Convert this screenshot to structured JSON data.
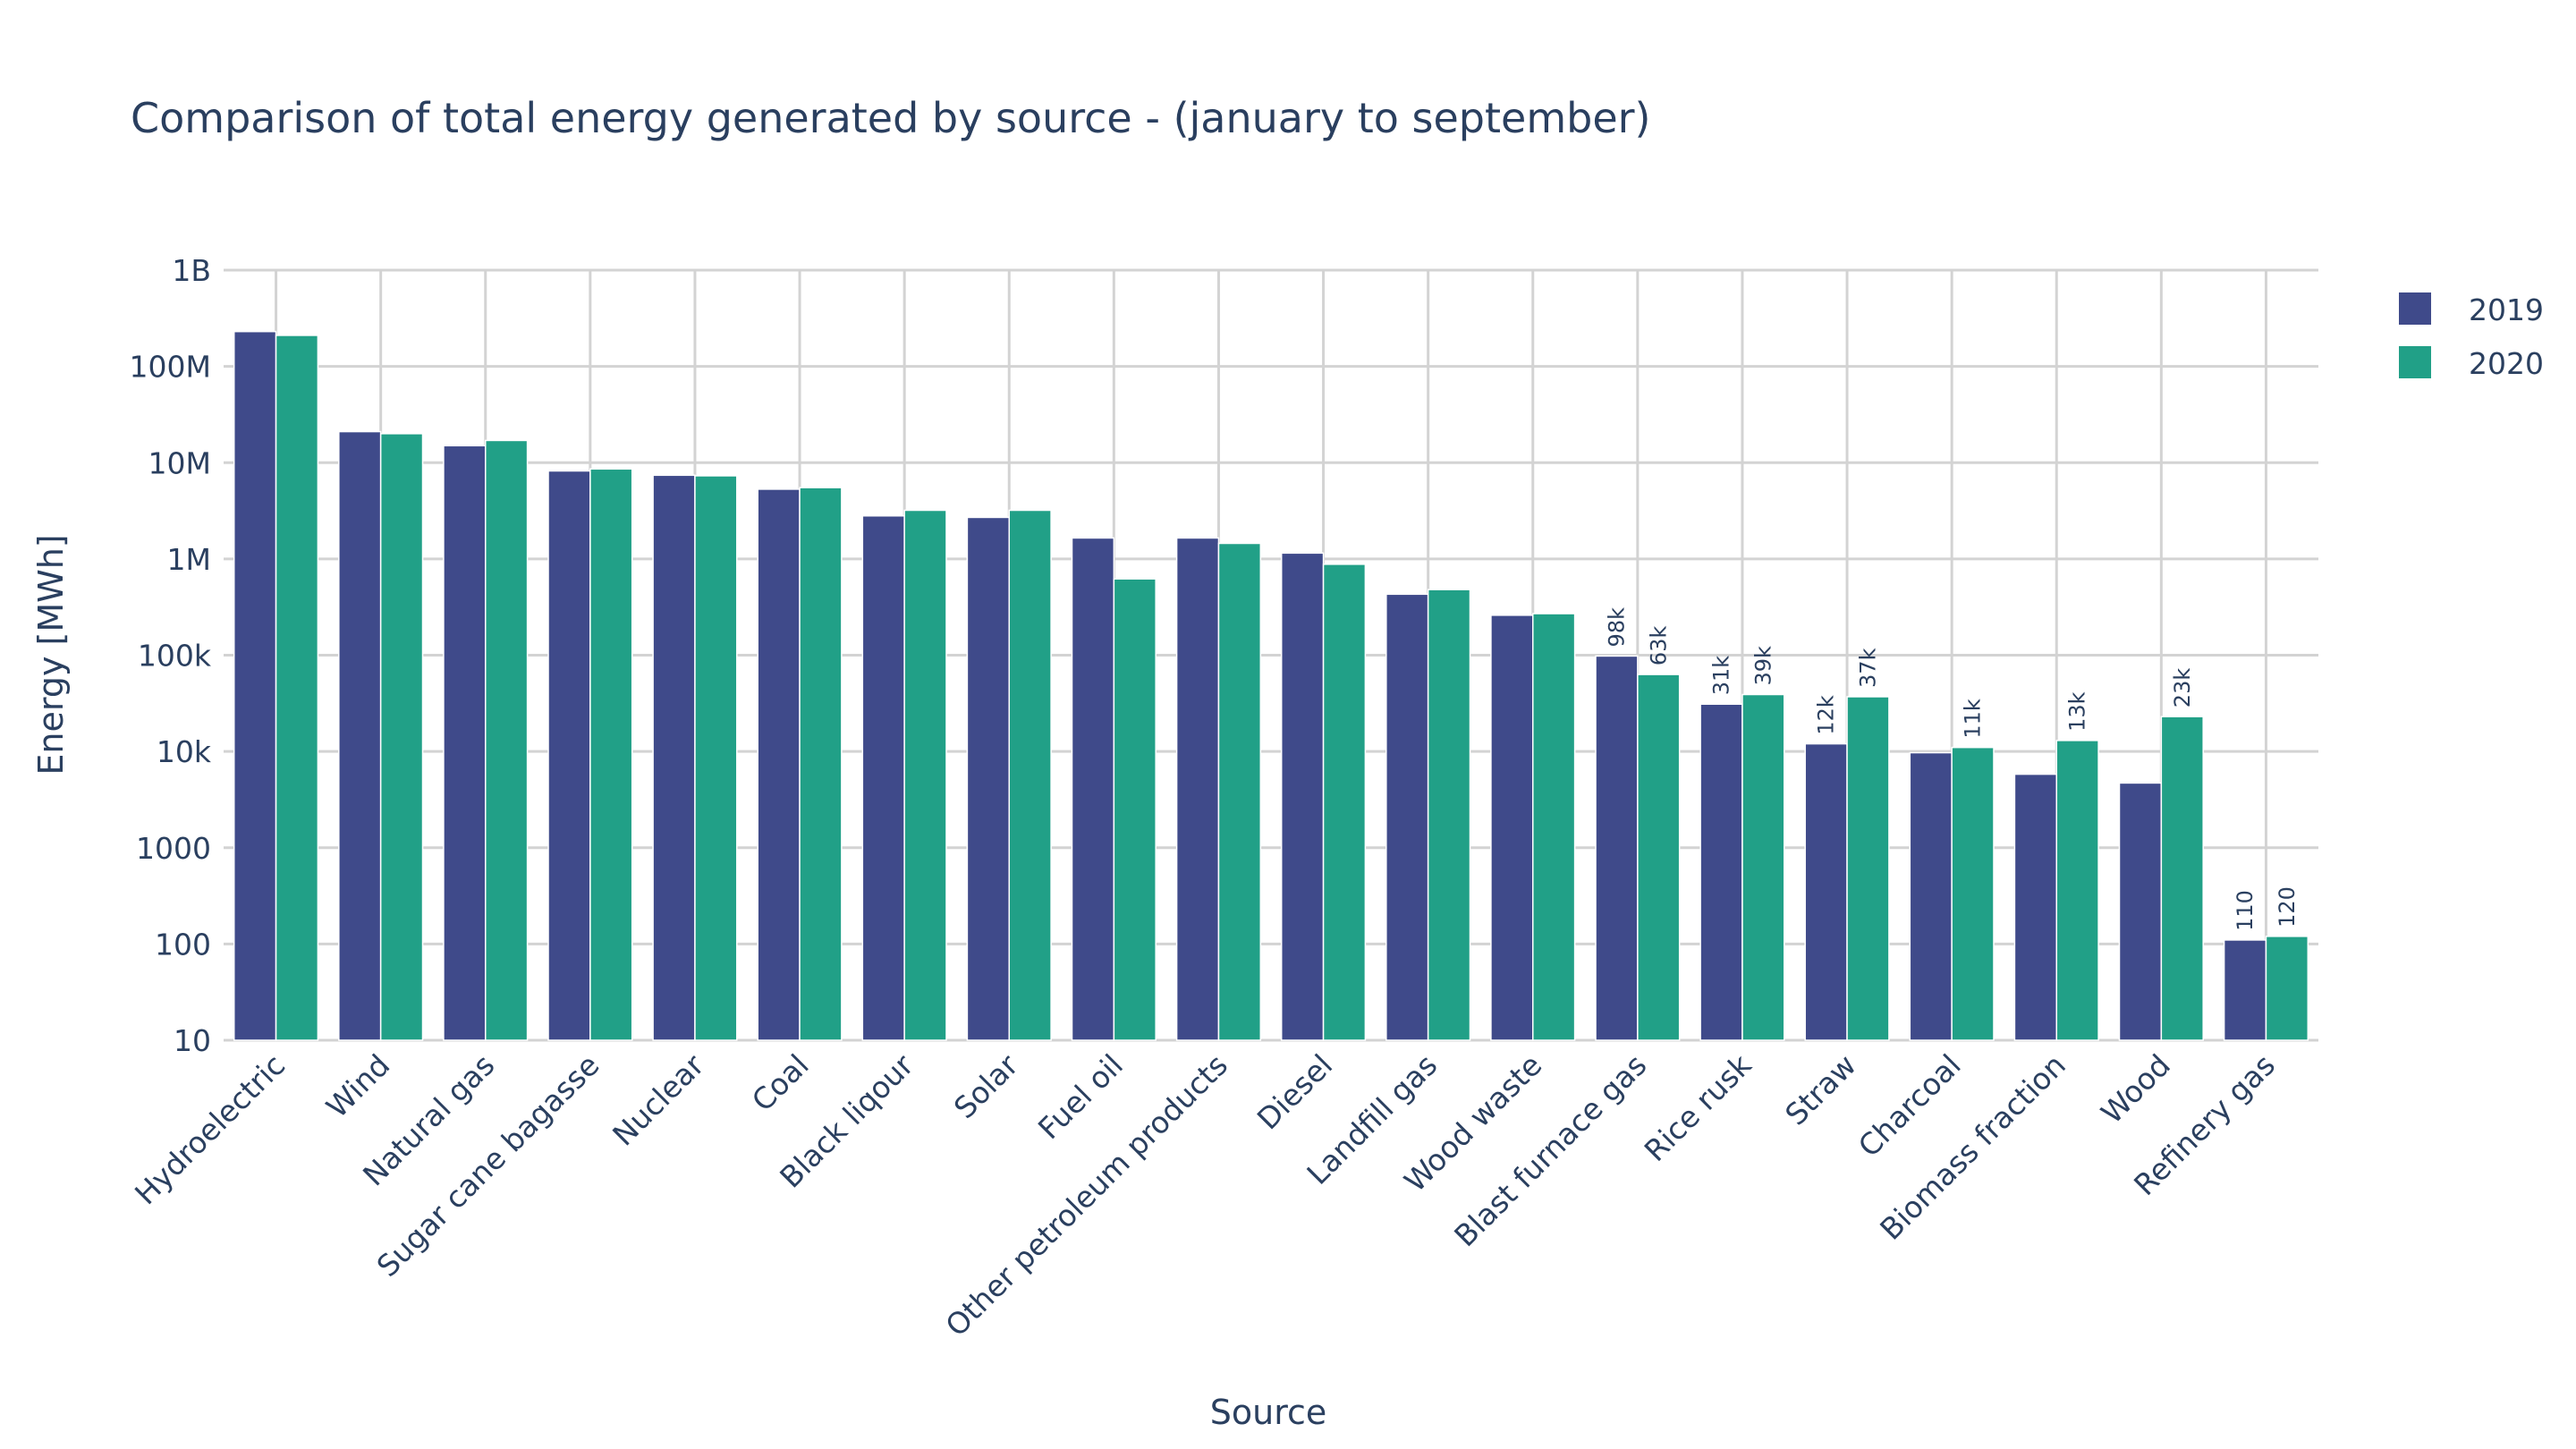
{
  "chart_data": {
    "type": "bar",
    "title": "Comparison of total energy generated by source - (january to september)",
    "xlabel": "Source",
    "ylabel": "Energy [MWh]",
    "yscale": "log",
    "ylim": [
      10,
      1000000000
    ],
    "yticks": [
      {
        "value": 10,
        "label": "10"
      },
      {
        "value": 100,
        "label": "100"
      },
      {
        "value": 1000,
        "label": "1000"
      },
      {
        "value": 10000,
        "label": "10k"
      },
      {
        "value": 100000,
        "label": "100k"
      },
      {
        "value": 1000000,
        "label": "1M"
      },
      {
        "value": 10000000,
        "label": "10M"
      },
      {
        "value": 100000000,
        "label": "100M"
      },
      {
        "value": 1000000000,
        "label": "1B"
      }
    ],
    "categories": [
      "Hydroelectric",
      "Wind",
      "Natural gas",
      "Sugar cane bagasse",
      "Nuclear",
      "Coal",
      "Black liqour",
      "Solar",
      "Fuel oil",
      "Other petroleum products",
      "Diesel",
      "Landfill gas",
      "Wood waste",
      "Blast furnace gas",
      "Rice rusk",
      "Straw",
      "Charcoal",
      "Biomass fraction",
      "Wood",
      "Refinery gas"
    ],
    "series": [
      {
        "name": "2019",
        "color": "#3f4a8a",
        "values": [
          230000000,
          21000000,
          15000000,
          8200000,
          7400000,
          5300000,
          2800000,
          2700000,
          1650000,
          1650000,
          1150000,
          430000,
          260000,
          98000,
          31000,
          12000,
          9700,
          5800,
          4700,
          110
        ],
        "labels": [
          "",
          "",
          "",
          "",
          "",
          "",
          "",
          "",
          "",
          "",
          "",
          "",
          "",
          "98k",
          "31k",
          "12k",
          "",
          "",
          "",
          "110"
        ]
      },
      {
        "name": "2020",
        "color": "#21a087",
        "values": [
          210000000,
          20000000,
          17000000,
          8600000,
          7300000,
          5500000,
          3200000,
          3200000,
          620000,
          1450000,
          880000,
          480000,
          270000,
          63000,
          39000,
          37000,
          11000,
          13000,
          23000,
          120
        ],
        "labels": [
          "",
          "",
          "",
          "",
          "",
          "",
          "",
          "",
          "",
          "",
          "",
          "",
          "",
          "63k",
          "39k",
          "37k",
          "11k",
          "13k",
          "23k",
          "120"
        ]
      }
    ],
    "legend_position": "top-right"
  }
}
